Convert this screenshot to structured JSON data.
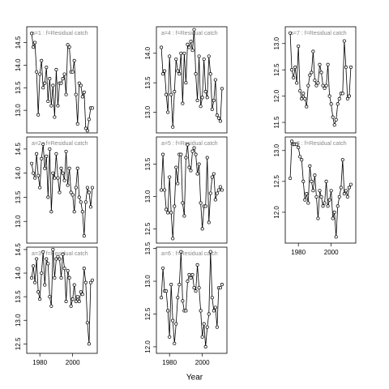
{
  "x_label": "Year",
  "chart_data": [
    {
      "type": "line",
      "title": "a=1 : f=Residual catch",
      "x": [
        1975,
        1976,
        1977,
        1978,
        1979,
        1980,
        1981,
        1982,
        1983,
        1984,
        1985,
        1986,
        1987,
        1988,
        1989,
        1990,
        1991,
        1992,
        1993,
        1994,
        1995,
        1996,
        1997,
        1998,
        1999,
        2000,
        2001,
        2002,
        2003,
        2004,
        2005,
        2006,
        2007,
        2008,
        2009,
        2010,
        2011,
        2012
      ],
      "series": [
        {
          "color": "#000000",
          "values": [
            14.7,
            14.4,
            14.5,
            13.85,
            12.9,
            13.8,
            14.1,
            13.5,
            13.6,
            13.95,
            13.2,
            13.7,
            13.1,
            13.55,
            12.85,
            13.9,
            13.1,
            13.6,
            13.6,
            13.7,
            13.8,
            13.35,
            14.45,
            14.4,
            13.85,
            13.85,
            14.1,
            13.35,
            12.7,
            13.6,
            13.55,
            13.3,
            13.4,
            12.6,
            12.55,
            12.8,
            13.05,
            13.05
          ]
        }
      ],
      "xlim": [
        1972,
        2015
      ],
      "xticks": [
        1980,
        2000
      ],
      "ylim": [
        12.5,
        14.85
      ],
      "yticks": [
        {
          "value": 13,
          "label": "13.0"
        },
        13.5,
        {
          "value": 14,
          "label": "14.0"
        },
        14.5
      ]
    },
    {
      "type": "line",
      "title": "a=2 : f=Residual catch",
      "x": [
        1975,
        1976,
        1977,
        1978,
        1979,
        1980,
        1981,
        1982,
        1983,
        1984,
        1985,
        1986,
        1987,
        1988,
        1989,
        1990,
        1991,
        1992,
        1993,
        1994,
        1995,
        1996,
        1997,
        1998,
        1999,
        2000,
        2001,
        2002,
        2003,
        2004,
        2005,
        2006,
        2007,
        2008,
        2009,
        2010,
        2011,
        2012
      ],
      "series": [
        {
          "color": "#000000",
          "values": [
            14.2,
            14.0,
            13.9,
            14.4,
            13.95,
            13.7,
            14.3,
            14.6,
            14.1,
            14.35,
            13.5,
            14.5,
            13.2,
            14.0,
            13.9,
            14.4,
            13.9,
            13.6,
            14.1,
            14.0,
            13.85,
            14.45,
            13.75,
            14.1,
            13.6,
            13.55,
            13.2,
            13.7,
            14.1,
            13.5,
            13.4,
            13.2,
            12.7,
            13.4,
            13.7,
            13.6,
            13.3,
            13.7
          ]
        }
      ],
      "xlim": [
        1972,
        2015
      ],
      "xticks": [
        1980,
        2000
      ],
      "ylim": [
        12.55,
        14.75
      ],
      "yticks": [
        {
          "value": 13,
          "label": "13.0"
        },
        13.5,
        {
          "value": 14,
          "label": "14.0"
        },
        14.5
      ]
    },
    {
      "type": "line",
      "title": "a=3 : f=Residual catch",
      "x": [
        1975,
        1976,
        1977,
        1978,
        1979,
        1980,
        1981,
        1982,
        1983,
        1984,
        1985,
        1986,
        1987,
        1988,
        1989,
        1990,
        1991,
        1992,
        1993,
        1994,
        1995,
        1996,
        1997,
        1998,
        1999,
        2000,
        2001,
        2002,
        2003,
        2004,
        2005,
        2006,
        2007,
        2008,
        2009,
        2010,
        2011,
        2012
      ],
      "series": [
        {
          "color": "#000000",
          "values": [
            13.9,
            14.15,
            13.8,
            14.3,
            13.6,
            13.45,
            14.0,
            14.45,
            13.75,
            14.3,
            14.2,
            13.5,
            13.3,
            14.5,
            13.9,
            14.3,
            14.35,
            14.3,
            13.9,
            14.4,
            14.1,
            13.4,
            14.05,
            13.9,
            13.3,
            13.45,
            13.75,
            13.4,
            13.5,
            13.4,
            13.6,
            13.55,
            14.1,
            13.8,
            12.95,
            12.5,
            13.8,
            13.85
          ]
        }
      ],
      "xlim": [
        1972,
        2015
      ],
      "xticks": [
        1980,
        2000
      ],
      "ylim": [
        12.3,
        14.55
      ],
      "yticks": [
        12.5,
        {
          "value": 13,
          "label": "13.0"
        },
        13.5,
        {
          "value": 14,
          "label": "14.0"
        },
        14.5
      ]
    },
    {
      "type": "line",
      "title": "a=4 : f=Residual catch",
      "x": [
        1975,
        1976,
        1977,
        1978,
        1979,
        1980,
        1981,
        1982,
        1983,
        1984,
        1985,
        1986,
        1987,
        1988,
        1989,
        1990,
        1991,
        1992,
        1993,
        1994,
        1995,
        1996,
        1997,
        1998,
        1999,
        2000,
        2001,
        2002,
        2003,
        2004,
        2005,
        2006,
        2007,
        2008,
        2009,
        2010,
        2011,
        2012
      ],
      "series": [
        {
          "color": "#000000",
          "values": [
            14.1,
            13.65,
            13.7,
            13.3,
            13.0,
            13.95,
            13.3,
            12.75,
            13.35,
            13.9,
            13.7,
            13.65,
            14.0,
            13.15,
            14.0,
            13.5,
            14.15,
            14.1,
            14.2,
            14.05,
            14.4,
            13.65,
            13.2,
            13.95,
            13.1,
            13.25,
            13.9,
            13.35,
            13.25,
            13.95,
            13.65,
            13.05,
            13.2,
            13.55,
            12.95,
            12.9,
            12.85,
            13.4
          ]
        }
      ],
      "xlim": [
        1972,
        2015
      ],
      "xticks": [
        1980,
        2000
      ],
      "ylim": [
        12.65,
        14.45
      ],
      "yticks": [
        {
          "value": 13,
          "label": "13.0"
        },
        13.5,
        {
          "value": 14,
          "label": "14.0"
        }
      ]
    },
    {
      "type": "line",
      "title": "a=5 : f=Residual catch",
      "x": [
        1975,
        1976,
        1977,
        1978,
        1979,
        1980,
        1981,
        1982,
        1983,
        1984,
        1985,
        1986,
        1987,
        1988,
        1989,
        1990,
        1991,
        1992,
        1993,
        1994,
        1995,
        1996,
        1997,
        1998,
        1999,
        2000,
        2001,
        2002,
        2003,
        2004,
        2005,
        2006,
        2007,
        2008,
        2009,
        2010,
        2011,
        2012
      ],
      "series": [
        {
          "color": "#000000",
          "values": [
            13.1,
            13.65,
            13.1,
            12.8,
            12.75,
            13.3,
            12.75,
            12.35,
            12.85,
            13.45,
            13.2,
            13.65,
            13.65,
            12.9,
            12.7,
            13.6,
            13.8,
            13.45,
            13.4,
            13.7,
            13.75,
            13.65,
            13.35,
            13.5,
            12.9,
            12.5,
            12.85,
            12.85,
            13.6,
            12.6,
            13.05,
            13.3,
            13.35,
            12.95,
            13.05,
            13.1,
            13.15,
            13.1
          ]
        }
      ],
      "xlim": [
        1972,
        2015
      ],
      "xticks": [
        1980,
        2000
      ],
      "ylim": [
        12.28,
        13.92
      ],
      "yticks": [
        12.5,
        {
          "value": 13,
          "label": "13.0"
        },
        13.5
      ]
    },
    {
      "type": "line",
      "title": "a=6 : f=Residual catch",
      "x": [
        1975,
        1976,
        1977,
        1978,
        1979,
        1980,
        1981,
        1982,
        1983,
        1984,
        1985,
        1986,
        1987,
        1988,
        1989,
        1990,
        1991,
        1992,
        1993,
        1994,
        1995,
        1996,
        1997,
        1998,
        1999,
        2000,
        2001,
        2002,
        2003,
        2004,
        2005,
        2006,
        2007,
        2008,
        2009,
        2010,
        2011,
        2012
      ],
      "series": [
        {
          "color": "#000000",
          "values": [
            12.75,
            13.2,
            12.85,
            12.85,
            12.55,
            12.15,
            12.95,
            12.4,
            12.05,
            12.35,
            12.75,
            12.95,
            13.45,
            12.7,
            12.55,
            12.55,
            13.0,
            13.1,
            13.05,
            13.1,
            12.9,
            12.85,
            13.25,
            12.9,
            12.55,
            12.15,
            12.35,
            12.0,
            12.3,
            12.5,
            13.45,
            12.75,
            12.55,
            12.6,
            12.3,
            12.9,
            12.9,
            12.95
          ]
        }
      ],
      "xlim": [
        1972,
        2015
      ],
      "xticks": [
        1980,
        2000
      ],
      "ylim": [
        11.9,
        13.52
      ],
      "yticks": [
        {
          "value": 12,
          "label": "12.0"
        },
        12.5,
        {
          "value": 13,
          "label": "13.0"
        },
        13.5
      ]
    },
    {
      "type": "line",
      "title": "a=7 : f=Residual catch",
      "x": [
        1975,
        1976,
        1977,
        1978,
        1979,
        1980,
        1981,
        1982,
        1983,
        1984,
        1985,
        1986,
        1987,
        1988,
        1989,
        1990,
        1991,
        1992,
        1993,
        1994,
        1995,
        1996,
        1997,
        1998,
        1999,
        2000,
        2001,
        2002,
        2003,
        2004,
        2005,
        2006,
        2007,
        2008,
        2009,
        2010,
        2011,
        2012
      ],
      "series": [
        {
          "color": "#000000",
          "values": [
            13.2,
            12.5,
            12.35,
            12.55,
            12.25,
            12.95,
            12.1,
            11.95,
            12.05,
            11.95,
            11.8,
            12.2,
            12.4,
            12.45,
            12.85,
            12.3,
            12.2,
            12.25,
            12.6,
            12.45,
            12.2,
            12.15,
            12.2,
            12.6,
            12.0,
            11.85,
            11.6,
            11.45,
            11.55,
            11.85,
            11.95,
            12.05,
            12.05,
            13.05,
            12.55,
            11.95,
            12.0,
            12.55
          ]
        }
      ],
      "xlim": [
        1972,
        2015
      ],
      "xticks": [
        1980,
        2000
      ],
      "ylim": [
        11.3,
        13.32
      ],
      "yticks": [
        11.5,
        {
          "value": 12,
          "label": "12.0"
        },
        12.5,
        {
          "value": 13,
          "label": "13.0"
        }
      ]
    },
    {
      "type": "line",
      "title": "a=8 : f=Residual catch",
      "x": [
        1975,
        1976,
        1977,
        1978,
        1979,
        1980,
        1981,
        1982,
        1983,
        1984,
        1985,
        1986,
        1987,
        1988,
        1989,
        1990,
        1991,
        1992,
        1993,
        1994,
        1995,
        1996,
        1997,
        1998,
        1999,
        2000,
        2001,
        2002,
        2003,
        2004,
        2005,
        2006,
        2007,
        2008,
        2009,
        2010,
        2011,
        2012
      ],
      "series": [
        {
          "color": "#000000",
          "values": [
            12.55,
            13.15,
            13.1,
            13.1,
            13.1,
            13.05,
            12.9,
            12.85,
            12.5,
            12.2,
            12.3,
            12.15,
            12.75,
            12.5,
            12.35,
            12.6,
            12.25,
            11.9,
            12.35,
            12.25,
            12.1,
            12.15,
            12.5,
            12.1,
            12.2,
            12.35,
            11.9,
            12.0,
            11.6,
            12.1,
            12.25,
            12.4,
            12.85,
            12.3,
            12.35,
            12.25,
            12.4,
            12.45
          ]
        }
      ],
      "xlim": [
        1972,
        2015
      ],
      "xticks": [
        1980,
        2000
      ],
      "ylim": [
        11.5,
        13.22
      ],
      "yticks": [
        {
          "value": 12,
          "label": "12.0"
        },
        12.5,
        {
          "value": 13,
          "label": "13.0"
        }
      ]
    }
  ]
}
